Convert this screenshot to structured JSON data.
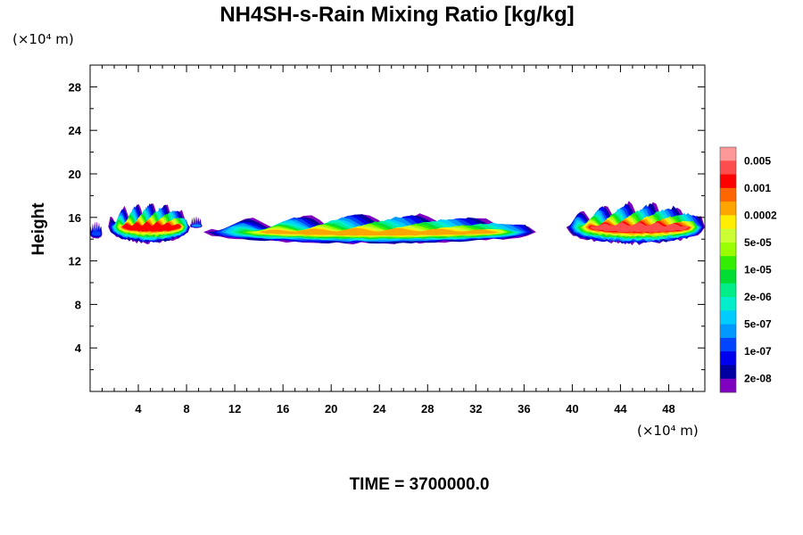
{
  "chart_data": {
    "type": "heatmap",
    "title": "NH4SH-s-Rain Mixing Ratio [kg/kg]",
    "ylabel": "Height",
    "xlabel": "",
    "x_unit": "(×10⁴ m)",
    "y_unit": "(×10⁴ m)",
    "x_ticks": [
      4,
      8,
      12,
      16,
      20,
      24,
      28,
      32,
      36,
      40,
      44,
      48
    ],
    "y_ticks": [
      4,
      8,
      12,
      16,
      20,
      24,
      28
    ],
    "xlim": [
      0,
      51
    ],
    "ylim": [
      0,
      30
    ],
    "x_minor_step": 1,
    "y_minor_step": 2,
    "colorbar": {
      "labels": [
        "0.005",
        "0.001",
        "0.0002",
        "5e-05",
        "1e-05",
        "2e-06",
        "5e-07",
        "1e-07",
        "2e-08"
      ],
      "colors": [
        "#ff9999",
        "#ff4d4d",
        "#ff0000",
        "#ff6600",
        "#ffa500",
        "#ffee00",
        "#ccff33",
        "#99ff00",
        "#33ee00",
        "#00dd33",
        "#00ee88",
        "#00eecc",
        "#00ccff",
        "#0099ff",
        "#0044ff",
        "#0000ee",
        "#0000a0",
        "#7f00bf"
      ]
    },
    "features": [
      {
        "x0": 0,
        "x1": 1.0,
        "ybot": 14.0,
        "ytop": 15.8,
        "peak": 3
      },
      {
        "x0": 1.5,
        "x1": 8.3,
        "ybot": 13.5,
        "ytop": 17.6,
        "peak": 15
      },
      {
        "x0": 8.3,
        "x1": 9.3,
        "ybot": 15.0,
        "ytop": 16.2,
        "peak": 4
      },
      {
        "x0": 9.4,
        "x1": 37.0,
        "ybot": 13.5,
        "ytop": 16.6,
        "peak": 13
      },
      {
        "x0": 39.5,
        "x1": 51,
        "ybot": 13.4,
        "ytop": 17.6,
        "peak": 16
      }
    ],
    "time_label": "TIME = 3700000.0"
  }
}
